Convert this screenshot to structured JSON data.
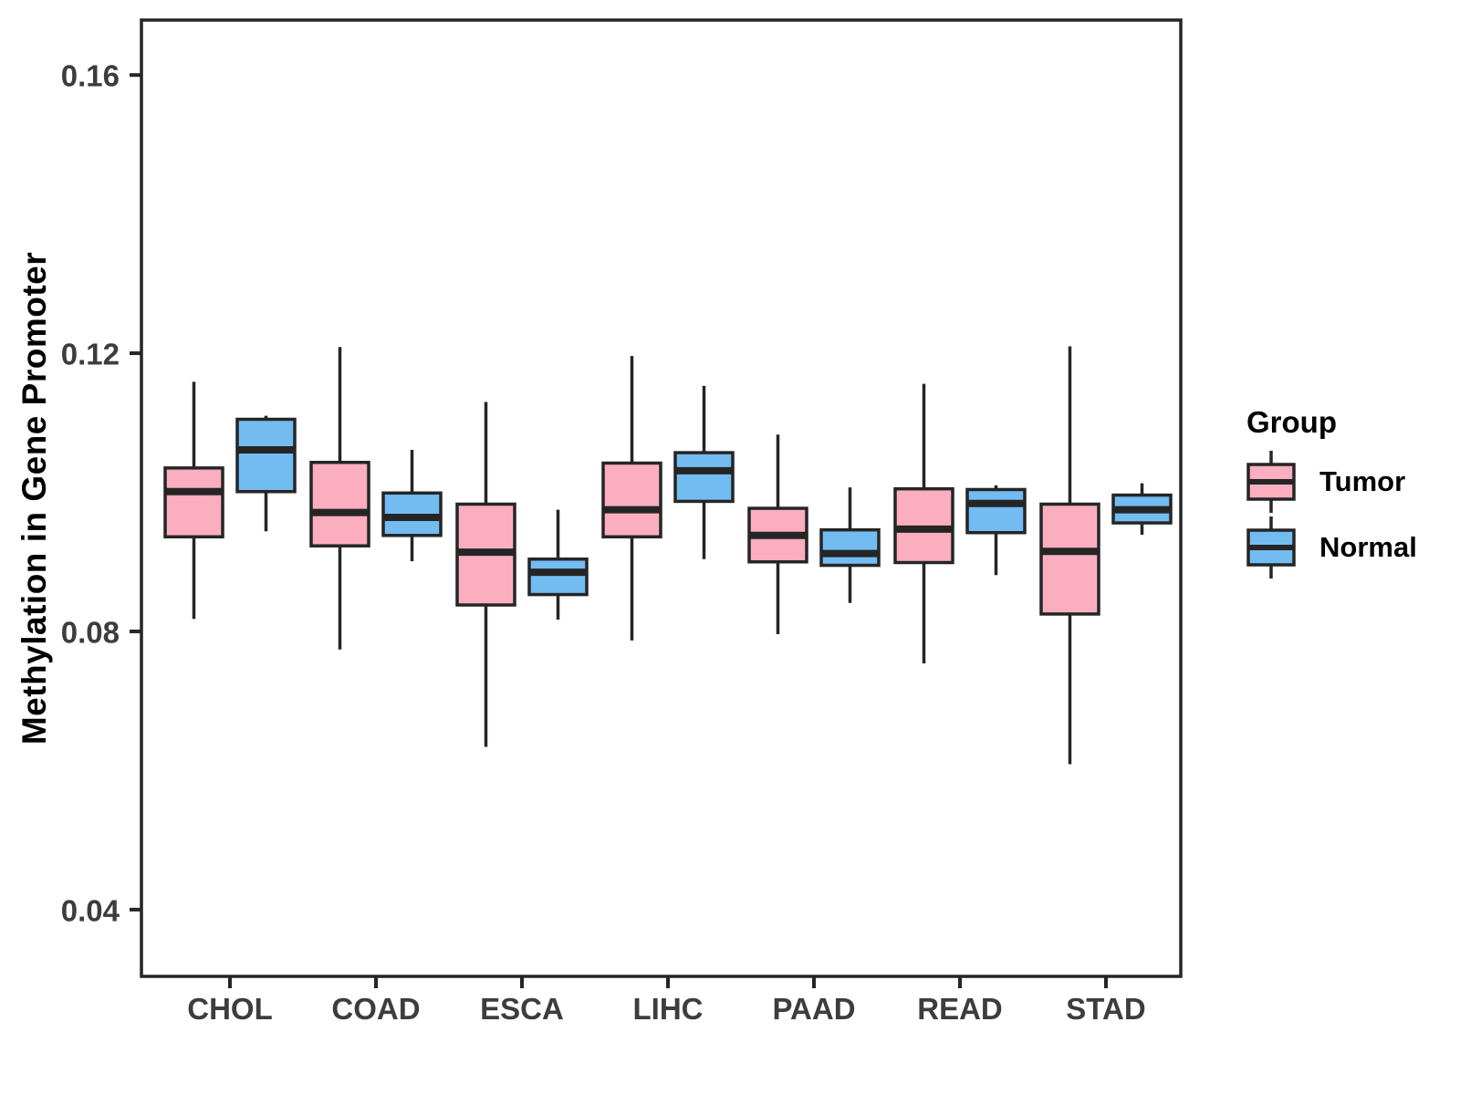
{
  "page": {
    "background": "#ffffff"
  },
  "colors": {
    "line": "#252525",
    "axis_text": "#3d3d3d",
    "title_text": "#000000",
    "tumor_fill": "#FAAEC0",
    "normal_fill": "#72BCF2"
  },
  "chart_data": {
    "type": "boxplot",
    "title": "",
    "xlabel": "",
    "ylabel": "Methylation in Gene Promoter",
    "grid": false,
    "panel_border": true,
    "categories": [
      "CHOL",
      "COAD",
      "ESCA",
      "LIHC",
      "PAAD",
      "READ",
      "STAD"
    ],
    "y_ticks": [
      0.04,
      0.08,
      0.12,
      0.16
    ],
    "y_tick_labels": [
      "0.04",
      "0.08",
      "0.12",
      "0.16"
    ],
    "ylim": [
      0.0304,
      0.1679
    ],
    "legend": {
      "title": "Group",
      "position": "right",
      "entries": [
        {
          "label": "Tumor",
          "color": "#FAAEC0"
        },
        {
          "label": "Normal",
          "color": "#72BCF2"
        }
      ]
    },
    "series": [
      {
        "name": "Tumor",
        "fill": "#FAAEC0",
        "boxes": [
          {
            "category": "CHOL",
            "whisker_low": 0.0818,
            "q1": 0.0936,
            "median": 0.1001,
            "q3": 0.1035,
            "whisker_high": 0.1159
          },
          {
            "category": "COAD",
            "whisker_low": 0.0774,
            "q1": 0.0923,
            "median": 0.0971,
            "q3": 0.1043,
            "whisker_high": 0.1209
          },
          {
            "category": "ESCA",
            "whisker_low": 0.0634,
            "q1": 0.0838,
            "median": 0.0914,
            "q3": 0.0983,
            "whisker_high": 0.113
          },
          {
            "category": "LIHC",
            "whisker_low": 0.0787,
            "q1": 0.0936,
            "median": 0.0975,
            "q3": 0.1042,
            "whisker_high": 0.1196
          },
          {
            "category": "PAAD",
            "whisker_low": 0.0796,
            "q1": 0.09,
            "median": 0.0938,
            "q3": 0.0977,
            "whisker_high": 0.1083
          },
          {
            "category": "READ",
            "whisker_low": 0.0754,
            "q1": 0.0899,
            "median": 0.0947,
            "q3": 0.1005,
            "whisker_high": 0.1156
          },
          {
            "category": "STAD",
            "whisker_low": 0.0609,
            "q1": 0.0825,
            "median": 0.0915,
            "q3": 0.0983,
            "whisker_high": 0.121
          }
        ]
      },
      {
        "name": "Normal",
        "fill": "#72BCF2",
        "boxes": [
          {
            "category": "CHOL",
            "whisker_low": 0.0944,
            "q1": 0.1001,
            "median": 0.1061,
            "q3": 0.1105,
            "whisker_high": 0.111
          },
          {
            "category": "COAD",
            "whisker_low": 0.0901,
            "q1": 0.0938,
            "median": 0.0964,
            "q3": 0.0999,
            "whisker_high": 0.1061
          },
          {
            "category": "ESCA",
            "whisker_low": 0.0817,
            "q1": 0.0853,
            "median": 0.0885,
            "q3": 0.0904,
            "whisker_high": 0.0975
          },
          {
            "category": "LIHC",
            "whisker_low": 0.0904,
            "q1": 0.0987,
            "median": 0.1031,
            "q3": 0.1057,
            "whisker_high": 0.1153
          },
          {
            "category": "PAAD",
            "whisker_low": 0.0841,
            "q1": 0.0895,
            "median": 0.0912,
            "q3": 0.0946,
            "whisker_high": 0.1007
          },
          {
            "category": "READ",
            "whisker_low": 0.0881,
            "q1": 0.0942,
            "median": 0.0984,
            "q3": 0.1004,
            "whisker_high": 0.101
          },
          {
            "category": "STAD",
            "whisker_low": 0.0939,
            "q1": 0.0956,
            "median": 0.0975,
            "q3": 0.0996,
            "whisker_high": 0.1013
          }
        ]
      }
    ]
  }
}
